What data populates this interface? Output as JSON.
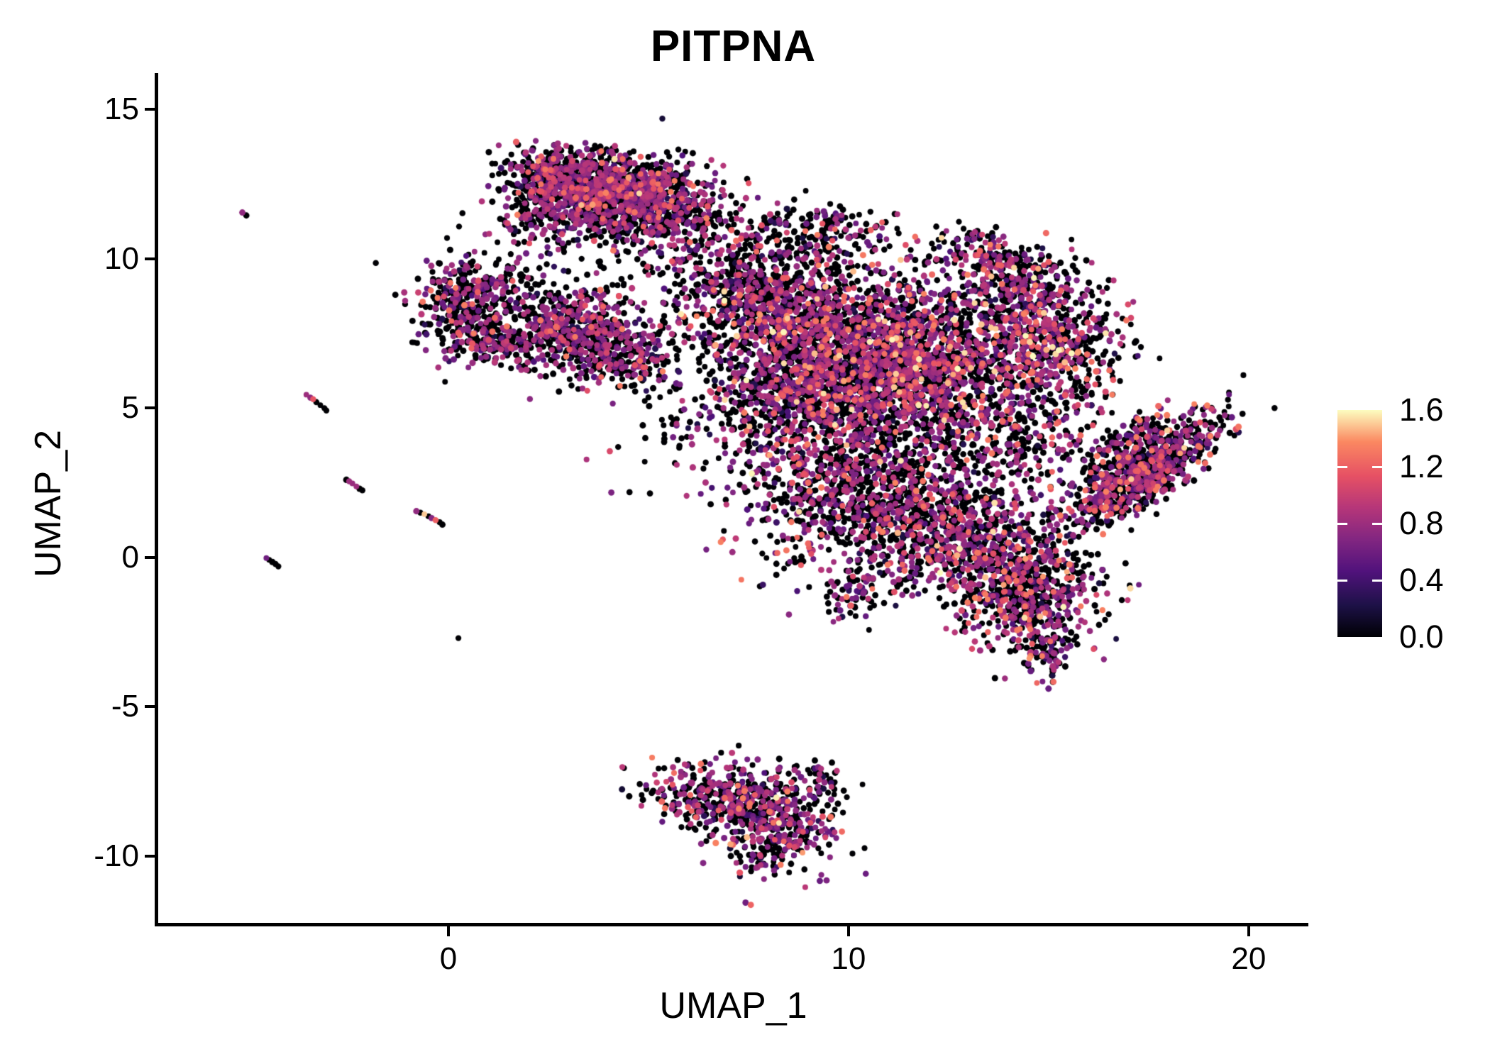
{
  "title": "PITPNA",
  "axes": {
    "x": {
      "label": "UMAP_1",
      "ticks": [
        0,
        10,
        20
      ],
      "range": [
        -7.27,
        21.51
      ]
    },
    "y": {
      "label": "UMAP_2",
      "ticks": [
        15,
        10,
        5,
        0,
        -5,
        -10
      ],
      "range": [
        -12.28,
        16.17
      ]
    }
  },
  "legend": {
    "tick_labels": [
      "1.6",
      "1.2",
      "0.8",
      "0.4",
      "0.0"
    ],
    "tick_values": [
      1.6,
      1.2,
      0.8,
      0.4,
      0.0
    ],
    "domain": [
      0,
      1.6
    ],
    "colormap": "magma"
  },
  "colors": {
    "background": "#ffffff",
    "axis": "#000000",
    "text": "#000000",
    "point_zero": "#000004",
    "point_mid_purple": "#9c2e7f",
    "point_high_salmon": "#f3705c",
    "point_max_pale": "#fbd9a0"
  },
  "chart_data": {
    "type": "scatter",
    "title": "PITPNA",
    "xlabel": "UMAP_1",
    "ylabel": "UMAP_2",
    "xlim": [
      -7.27,
      21.51
    ],
    "ylim": [
      -12.28,
      16.17
    ],
    "grid": false,
    "legend_position": "right",
    "point_radius_px": 4.2,
    "color_scale": {
      "name": "magma",
      "domain": [
        0,
        1.6
      ],
      "stops": [
        [
          0.0,
          "#000004"
        ],
        [
          0.14,
          "#1d1147"
        ],
        [
          0.29,
          "#51127c"
        ],
        [
          0.43,
          "#822681"
        ],
        [
          0.57,
          "#b63679"
        ],
        [
          0.71,
          "#e65164"
        ],
        [
          0.86,
          "#fb8861"
        ],
        [
          1.0,
          "#fcfdbf"
        ]
      ]
    },
    "expression_bands": {
      "low": [
        0.15,
        0.5
      ],
      "mid": [
        0.55,
        0.95
      ],
      "high": [
        1.0,
        1.35
      ],
      "max": [
        1.4,
        1.6
      ]
    },
    "clusters": [
      {
        "name": "top-cluster-left",
        "cx": 3.3,
        "cy": 12.6,
        "sx": 0.95,
        "sy": 0.55,
        "rot": -8,
        "n": 700,
        "weights": [
          0.52,
          0.06,
          0.36,
          0.055,
          0.005
        ]
      },
      {
        "name": "top-cluster-right",
        "cx": 4.9,
        "cy": 12.1,
        "sx": 0.95,
        "sy": 0.6,
        "rot": -12,
        "n": 650,
        "weights": [
          0.52,
          0.06,
          0.36,
          0.055,
          0.005
        ]
      },
      {
        "name": "top-cluster-fringe",
        "cx": 4.0,
        "cy": 11.3,
        "sx": 1.2,
        "sy": 0.45,
        "rot": 0,
        "n": 300,
        "weights": [
          0.58,
          0.06,
          0.32,
          0.04,
          0
        ]
      },
      {
        "name": "top-cluster-stragglers",
        "cx": 5.8,
        "cy": 10.9,
        "sx": 1.1,
        "sy": 0.8,
        "rot": 0,
        "n": 130,
        "weights": [
          0.62,
          0.06,
          0.28,
          0.04,
          0
        ]
      },
      {
        "name": "top-cluster-left-tip",
        "cx": 2.2,
        "cy": 12.0,
        "sx": 0.45,
        "sy": 0.65,
        "rot": 0,
        "n": 120,
        "weights": [
          0.55,
          0.06,
          0.35,
          0.04,
          0
        ]
      },
      {
        "name": "left-blob-upper",
        "cx": 0.55,
        "cy": 9.0,
        "sx": 0.7,
        "sy": 0.55,
        "rot": 0,
        "n": 240,
        "weights": [
          0.6,
          0.06,
          0.3,
          0.04,
          0
        ]
      },
      {
        "name": "left-blob-lower",
        "cx": 0.35,
        "cy": 7.7,
        "sx": 0.6,
        "sy": 0.55,
        "rot": 0,
        "n": 200,
        "weights": [
          0.6,
          0.06,
          0.3,
          0.04,
          0
        ]
      },
      {
        "name": "left-blob-tail",
        "cx": 1.3,
        "cy": 7.1,
        "sx": 0.45,
        "sy": 0.3,
        "rot": -20,
        "n": 90,
        "weights": [
          0.6,
          0.06,
          0.3,
          0.04,
          0
        ]
      },
      {
        "name": "mid-cluster",
        "cx": 3.3,
        "cy": 7.5,
        "sx": 0.95,
        "sy": 0.7,
        "rot": -18,
        "n": 650,
        "weights": [
          0.52,
          0.06,
          0.36,
          0.06,
          0
        ]
      },
      {
        "name": "mid-cluster-tip",
        "cx": 4.6,
        "cy": 6.5,
        "sx": 0.45,
        "sy": 0.35,
        "rot": 0,
        "n": 110,
        "weights": [
          0.55,
          0.06,
          0.33,
          0.06,
          0
        ]
      },
      {
        "name": "bridge-upper-sparse",
        "cx": 2.6,
        "cy": 9.7,
        "sx": 1.2,
        "sy": 0.9,
        "rot": 0,
        "n": 70,
        "weights": [
          0.66,
          0.06,
          0.26,
          0.02,
          0
        ]
      },
      {
        "name": "bridge-mid-sparse",
        "cx": 5.6,
        "cy": 5.0,
        "sx": 0.9,
        "sy": 1.3,
        "rot": 0,
        "n": 60,
        "weights": [
          0.7,
          0.05,
          0.23,
          0.02,
          0
        ]
      },
      {
        "name": "main-upper-left-lobe",
        "cx": 7.9,
        "cy": 8.7,
        "sx": 1.3,
        "sy": 1.0,
        "rot": -25,
        "n": 850,
        "weights": [
          0.54,
          0.06,
          0.31,
          0.08,
          0.01
        ]
      },
      {
        "name": "main-left-lobe",
        "cx": 8.4,
        "cy": 5.6,
        "sx": 1.1,
        "sy": 1.4,
        "rot": 0,
        "n": 800,
        "weights": [
          0.54,
          0.06,
          0.31,
          0.08,
          0.01
        ]
      },
      {
        "name": "main-core",
        "cx": 11.3,
        "cy": 6.5,
        "sx": 1.8,
        "sy": 1.5,
        "rot": -10,
        "n": 2500,
        "weights": [
          0.5,
          0.05,
          0.33,
          0.1,
          0.02
        ]
      },
      {
        "name": "main-crescent-right",
        "cx": 14.9,
        "cy": 7.6,
        "sx": 0.85,
        "sy": 1.25,
        "rot": 22,
        "n": 650,
        "weights": [
          0.5,
          0.05,
          0.33,
          0.1,
          0.02
        ]
      },
      {
        "name": "main-crescent-top",
        "cx": 13.6,
        "cy": 9.9,
        "sx": 0.8,
        "sy": 0.45,
        "rot": -30,
        "n": 200,
        "weights": [
          0.54,
          0.06,
          0.32,
          0.07,
          0.01
        ]
      },
      {
        "name": "main-lower-lobe",
        "cx": 10.4,
        "cy": 2.0,
        "sx": 1.5,
        "sy": 1.3,
        "rot": 0,
        "n": 1000,
        "weights": [
          0.54,
          0.06,
          0.31,
          0.08,
          0.01
        ]
      },
      {
        "name": "main-lower-right-a",
        "cx": 12.9,
        "cy": 0.6,
        "sx": 1.1,
        "sy": 0.9,
        "rot": 15,
        "n": 550,
        "weights": [
          0.54,
          0.06,
          0.31,
          0.08,
          0.01
        ]
      },
      {
        "name": "main-lower-right-b",
        "cx": 14.5,
        "cy": -1.2,
        "sx": 0.95,
        "sy": 0.9,
        "rot": -35,
        "n": 650,
        "weights": [
          0.5,
          0.05,
          0.33,
          0.1,
          0.02
        ]
      },
      {
        "name": "main-lower-right-tip",
        "cx": 15.0,
        "cy": -3.2,
        "sx": 0.3,
        "sy": 0.4,
        "rot": 0,
        "n": 70,
        "weights": [
          0.6,
          0.05,
          0.3,
          0.05,
          0
        ]
      },
      {
        "name": "main-right-sparse",
        "cx": 14.2,
        "cy": 3.6,
        "sx": 1.1,
        "sy": 1.1,
        "rot": 0,
        "n": 260,
        "weights": [
          0.62,
          0.05,
          0.27,
          0.06,
          0
        ]
      },
      {
        "name": "main-bottom-spur",
        "cx": 10.1,
        "cy": -1.3,
        "sx": 0.3,
        "sy": 0.5,
        "rot": 0,
        "n": 60,
        "weights": [
          0.58,
          0.06,
          0.3,
          0.06,
          0
        ]
      },
      {
        "name": "main-top-bridge",
        "cx": 9.2,
        "cy": 10.8,
        "sx": 1.0,
        "sy": 0.55,
        "rot": 0,
        "n": 190,
        "weights": [
          0.6,
          0.06,
          0.29,
          0.05,
          0
        ]
      },
      {
        "name": "right-wing",
        "cx": 17.35,
        "cy": 2.85,
        "sx": 1.3,
        "sy": 0.45,
        "rot": 43,
        "n": 800,
        "weights": [
          0.52,
          0.05,
          0.34,
          0.08,
          0.01
        ]
      },
      {
        "name": "right-wing-top",
        "cx": 17.0,
        "cy": 3.9,
        "sx": 0.6,
        "sy": 0.3,
        "rot": 43,
        "n": 120,
        "weights": [
          0.55,
          0.05,
          0.32,
          0.08,
          0
        ]
      },
      {
        "name": "bottom-cluster-left",
        "cx": 7.0,
        "cy": -8.0,
        "sx": 1.0,
        "sy": 0.6,
        "rot": -10,
        "n": 420,
        "weights": [
          0.52,
          0.06,
          0.33,
          0.08,
          0.01
        ]
      },
      {
        "name": "bottom-cluster-right",
        "cx": 8.2,
        "cy": -9.2,
        "sx": 0.75,
        "sy": 0.7,
        "rot": -25,
        "n": 330,
        "weights": [
          0.52,
          0.06,
          0.33,
          0.08,
          0.01
        ]
      },
      {
        "name": "bottom-cluster-tail",
        "cx": 9.3,
        "cy": -7.4,
        "sx": 0.4,
        "sy": 0.25,
        "rot": -20,
        "n": 45,
        "weights": [
          0.75,
          0.05,
          0.18,
          0.02,
          0
        ]
      }
    ],
    "singleton_points": [
      {
        "x": -5.15,
        "y": 11.55,
        "v": 0.75
      },
      {
        "x": -5.05,
        "y": 11.45,
        "v": 0
      },
      {
        "x": -3.55,
        "y": 5.45,
        "v": 0.8
      },
      {
        "x": -3.45,
        "y": 5.35,
        "v": 0.75
      },
      {
        "x": -3.38,
        "y": 5.3,
        "v": 1.15
      },
      {
        "x": -3.3,
        "y": 5.2,
        "v": 0
      },
      {
        "x": -3.2,
        "y": 5.1,
        "v": 0
      },
      {
        "x": -3.1,
        "y": 5.0,
        "v": 0
      },
      {
        "x": -3.05,
        "y": 4.92,
        "v": 0
      },
      {
        "x": -4.55,
        "y": -0.02,
        "v": 0.6
      },
      {
        "x": -4.48,
        "y": -0.08,
        "v": 0
      },
      {
        "x": -4.4,
        "y": -0.15,
        "v": 0
      },
      {
        "x": -4.32,
        "y": -0.22,
        "v": 0
      },
      {
        "x": -4.25,
        "y": -0.3,
        "v": 0
      },
      {
        "x": -2.55,
        "y": 2.6,
        "v": 0
      },
      {
        "x": -2.48,
        "y": 2.55,
        "v": 0.8
      },
      {
        "x": -2.4,
        "y": 2.48,
        "v": 0.78
      },
      {
        "x": -2.3,
        "y": 2.38,
        "v": 0.8
      },
      {
        "x": -2.22,
        "y": 2.3,
        "v": 0
      },
      {
        "x": -2.15,
        "y": 2.25,
        "v": 0
      },
      {
        "x": -0.8,
        "y": 1.55,
        "v": 0.75
      },
      {
        "x": -0.7,
        "y": 1.5,
        "v": 0
      },
      {
        "x": -0.6,
        "y": 1.45,
        "v": 1.5
      },
      {
        "x": -0.5,
        "y": 1.38,
        "v": 0
      },
      {
        "x": -0.42,
        "y": 1.32,
        "v": 0.7
      },
      {
        "x": -0.32,
        "y": 1.25,
        "v": 1.2
      },
      {
        "x": -0.22,
        "y": 1.18,
        "v": 0
      },
      {
        "x": -0.15,
        "y": 1.1,
        "v": 0
      },
      {
        "x": 0.25,
        "y": -2.7,
        "v": 0
      },
      {
        "x": 0.9,
        "y": 10.2,
        "v": 0
      }
    ]
  }
}
